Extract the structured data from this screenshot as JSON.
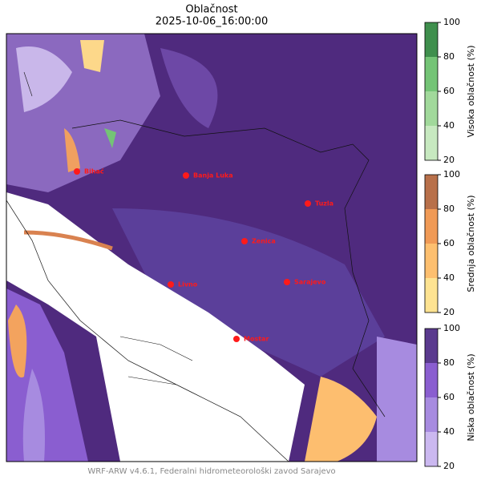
{
  "header": {
    "title": "Oblačnost",
    "subtitle": "2025-10-06_16:00:00"
  },
  "map": {
    "cities": [
      {
        "label": "Bihać"
      },
      {
        "label": "Banja Luka"
      },
      {
        "label": "Tuzla"
      },
      {
        "label": "Zenica"
      },
      {
        "label": "Livno"
      },
      {
        "label": "Sarajevo"
      },
      {
        "label": "Mostar"
      }
    ]
  },
  "colorbars": [
    {
      "label": "Visoka oblačnost (%)",
      "ticks": [
        20,
        40,
        60,
        80,
        100
      ]
    },
    {
      "label": "Srednja oblačnost (%)",
      "ticks": [
        20,
        40,
        60,
        80,
        100
      ]
    },
    {
      "label": "Niska oblačnost (%)",
      "ticks": [
        20,
        40,
        60,
        80,
        100
      ]
    }
  ],
  "footer": "WRF-ARW v4.6.1, Federalni hidrometeorološki zavod Sarajevo"
}
